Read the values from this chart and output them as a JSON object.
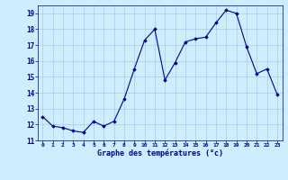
{
  "x": [
    0,
    1,
    2,
    3,
    4,
    5,
    6,
    7,
    8,
    9,
    10,
    11,
    12,
    13,
    14,
    15,
    16,
    17,
    18,
    19,
    20,
    21,
    22,
    23
  ],
  "y": [
    12.5,
    11.9,
    11.8,
    11.6,
    11.5,
    12.2,
    11.9,
    12.2,
    13.6,
    15.5,
    17.3,
    18.0,
    14.8,
    15.9,
    17.2,
    17.4,
    17.5,
    18.4,
    19.2,
    19.0,
    16.9,
    15.2,
    15.5,
    13.9
  ],
  "xlabel": "Graphe des températures (°c)",
  "ylim": [
    11,
    19.5
  ],
  "xlim": [
    -0.5,
    23.5
  ],
  "yticks": [
    11,
    12,
    13,
    14,
    15,
    16,
    17,
    18,
    19
  ],
  "xticks": [
    0,
    1,
    2,
    3,
    4,
    5,
    6,
    7,
    8,
    9,
    10,
    11,
    12,
    13,
    14,
    15,
    16,
    17,
    18,
    19,
    20,
    21,
    22,
    23
  ],
  "line_color": "#00008b",
  "marker_color": "#00008b",
  "bg_color": "#cceeff",
  "grid_color": "#aaccdd",
  "xlabel_color": "#00008b",
  "fig_width": 3.2,
  "fig_height": 2.0,
  "dpi": 100
}
